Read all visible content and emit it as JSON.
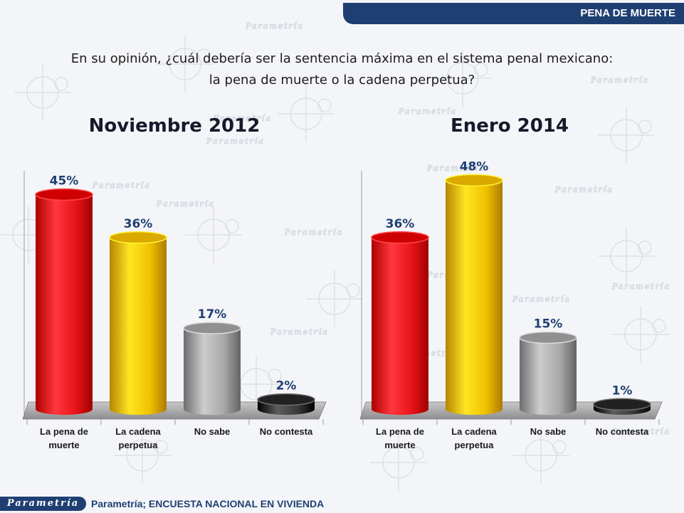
{
  "header": {
    "section_title": "PENA DE MUERTE"
  },
  "question": {
    "line1": "En su opinión, ¿cuál debería ser la sentencia máxima en el sistema penal mexicano:",
    "line2": "la pena de muerte o la cadena perpetua?"
  },
  "watermark": "Parametría",
  "footer": {
    "logo": "Parametría",
    "source": "Parametría; ENCUESTA NACIONAL  EN VIVIENDA"
  },
  "colors": {
    "red": "#e8141a",
    "yellow": "#f2c200",
    "gray": "#a9a9a9",
    "dark": "#3a3a3a",
    "brand": "#1f3f73"
  },
  "chart_data": [
    {
      "type": "bar",
      "title": "Noviembre 2012",
      "categories": [
        [
          "La pena de",
          "muerte"
        ],
        [
          "La cadena",
          "perpetua"
        ],
        [
          "No sabe"
        ],
        [
          "No contesta"
        ]
      ],
      "values": [
        45,
        36,
        17,
        2
      ],
      "labels": [
        "45%",
        "36%",
        "17%",
        "2%"
      ],
      "ylim": [
        0,
        50
      ]
    },
    {
      "type": "bar",
      "title": "Enero 2014",
      "categories": [
        [
          "La pena de",
          "muerte"
        ],
        [
          "La cadena",
          "perpetua"
        ],
        [
          "No sabe"
        ],
        [
          "No contesta"
        ]
      ],
      "values": [
        36,
        48,
        15,
        1
      ],
      "labels": [
        "36%",
        "48%",
        "15%",
        "1%"
      ],
      "ylim": [
        0,
        50
      ]
    }
  ]
}
